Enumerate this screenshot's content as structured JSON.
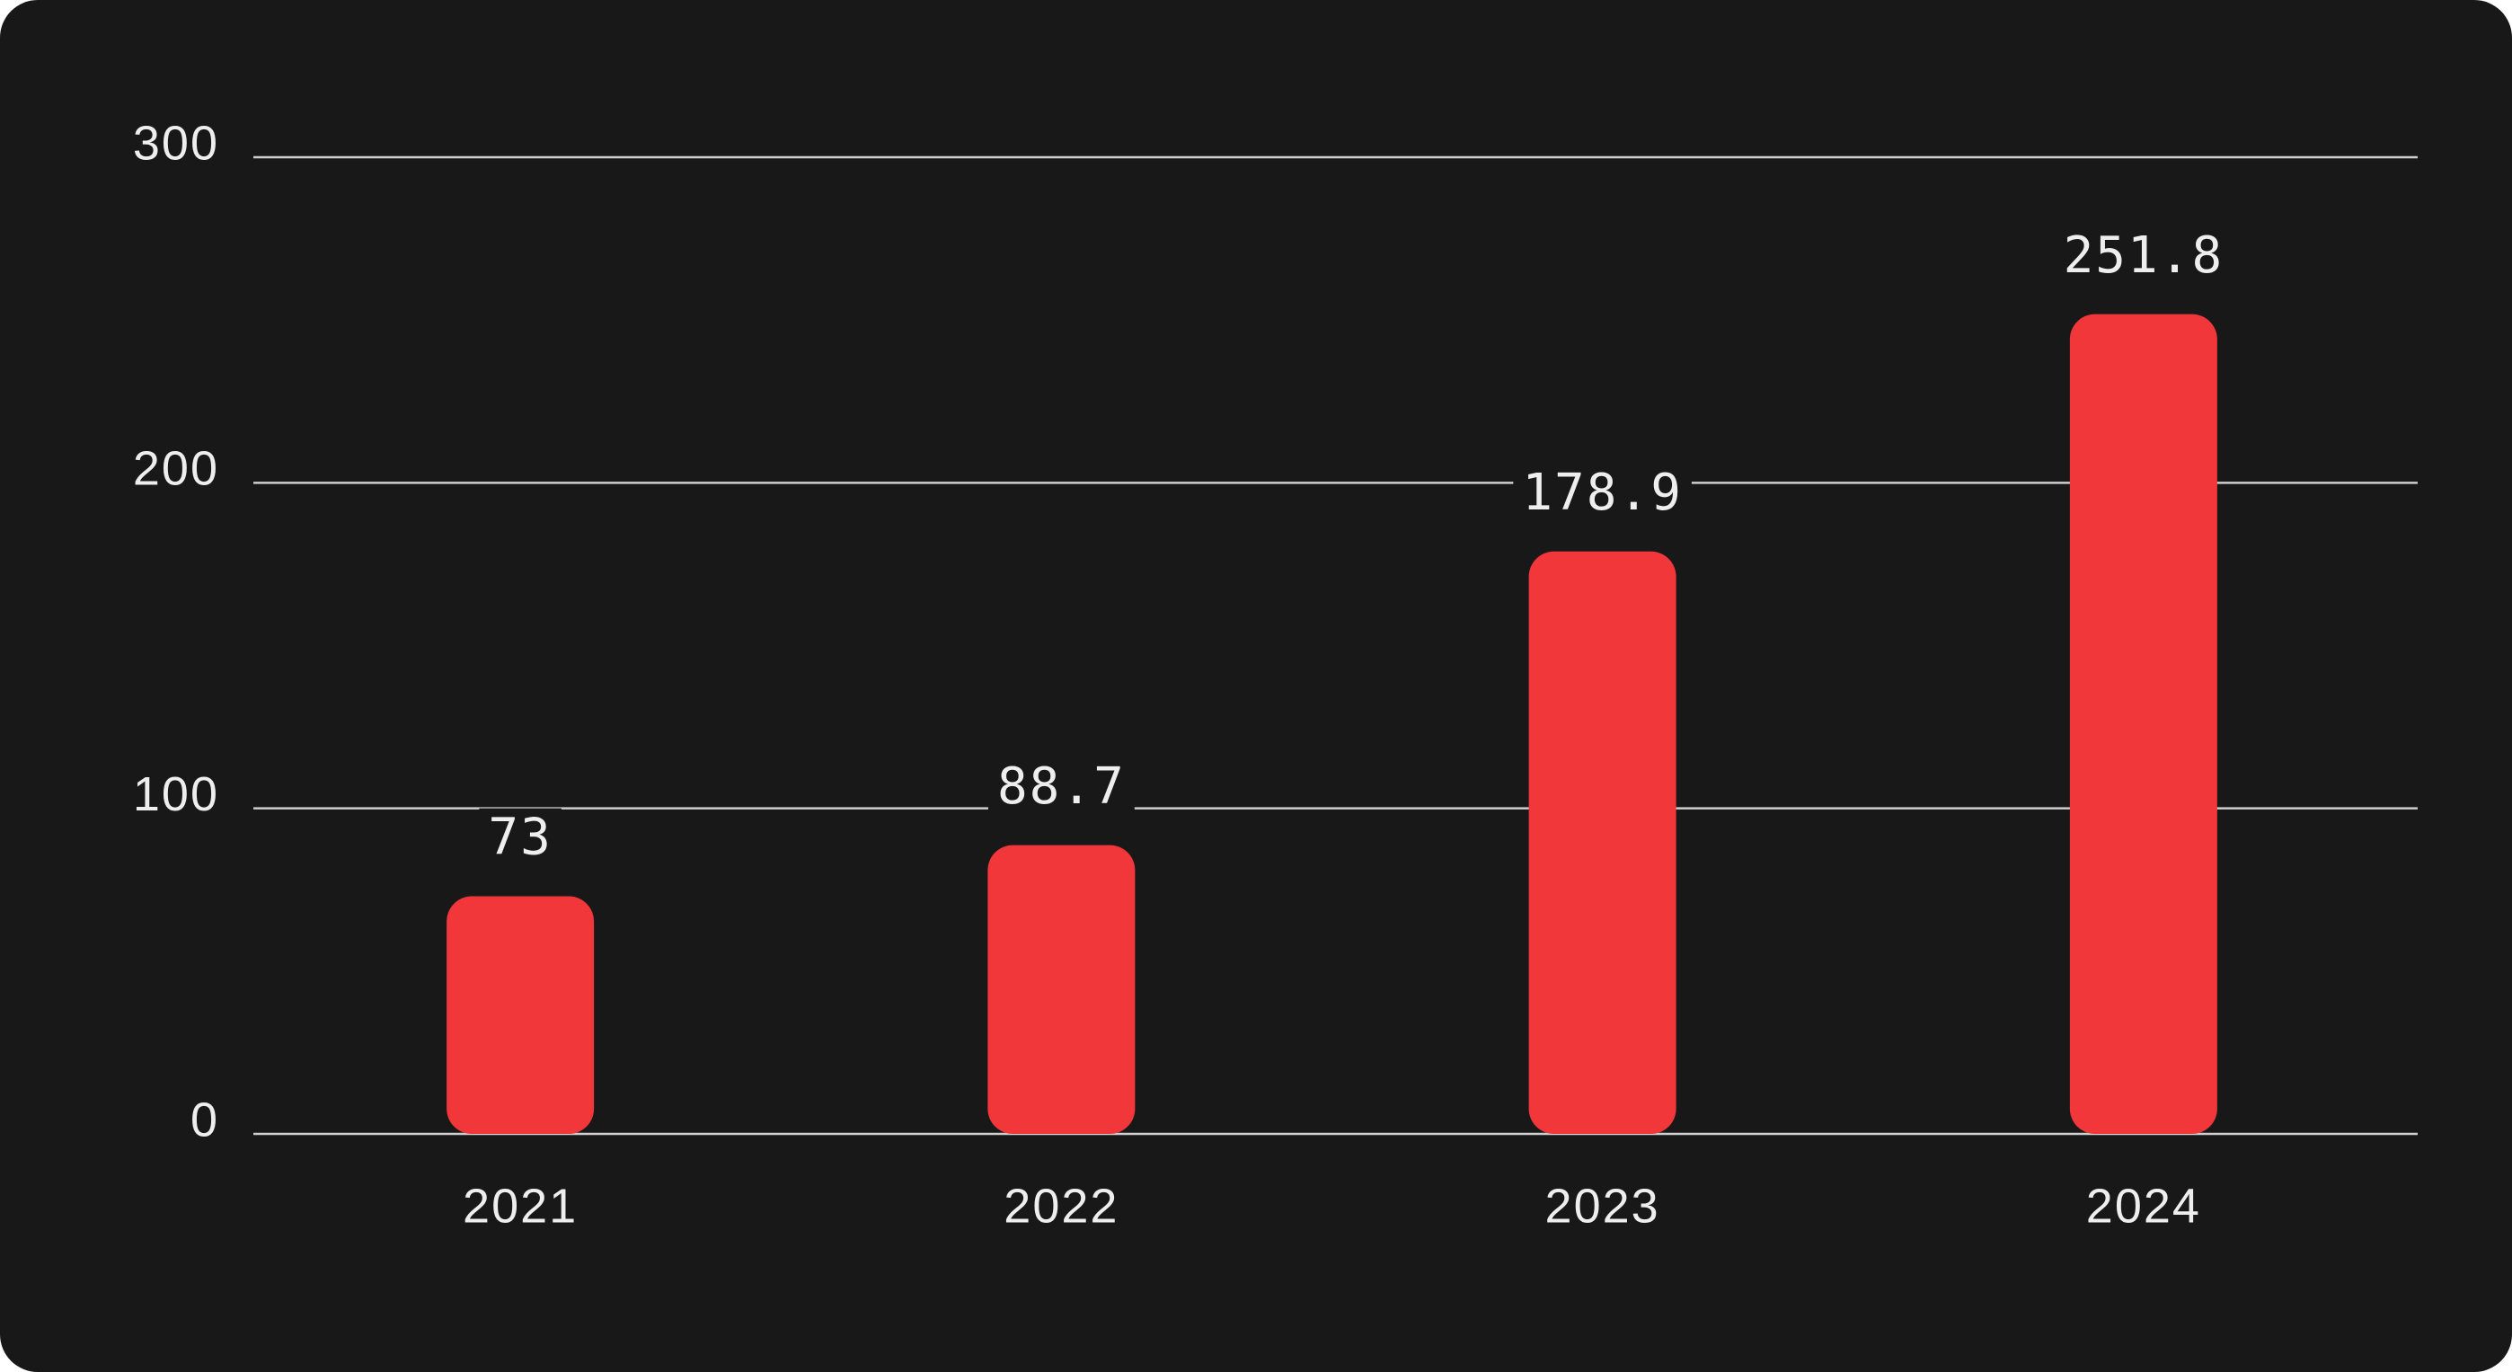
{
  "chart_data": {
    "type": "bar",
    "categories": [
      "2021",
      "2022",
      "2023",
      "2024"
    ],
    "values": [
      73,
      88.7,
      178.9,
      251.8
    ],
    "color": "#f2373a",
    "ylim": [
      0,
      300
    ],
    "yticks": [
      0,
      100,
      200,
      300
    ],
    "grid": true
  }
}
